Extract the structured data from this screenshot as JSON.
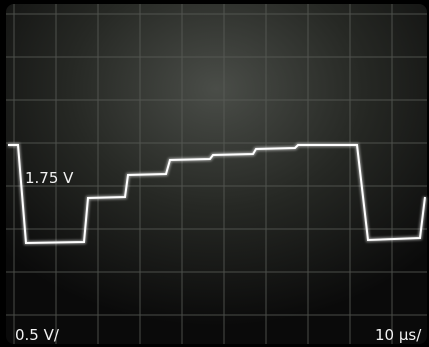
{
  "screen": {
    "level_label": "1.75 V",
    "vertical_scale": "0.5 V/",
    "time_scale": "10 µs/"
  }
}
